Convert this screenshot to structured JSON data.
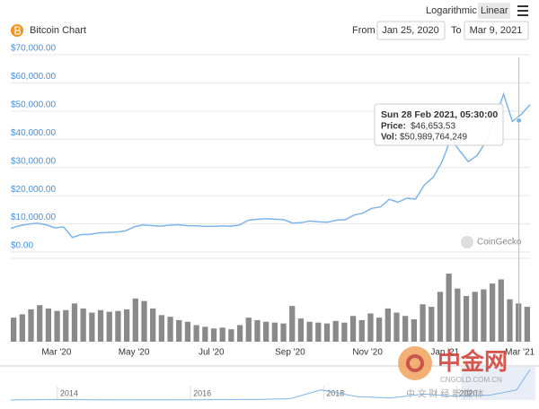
{
  "header": {
    "title": "Bitcoin Chart",
    "scale_options": [
      "Logarithmic",
      "Linear"
    ],
    "selected_scale": 1,
    "from_label": "From",
    "to_label": "To"
  },
  "chart_data": [
    {
      "type": "line",
      "color": "#7cb5ec",
      "log_scale": false,
      "grid": true,
      "xlim": [
        "Jan 25, 2020",
        "Mar 9, 2021"
      ],
      "ylim": [
        0,
        70000
      ],
      "yticks": [
        {
          "value": 0,
          "label": "$0.00"
        },
        {
          "value": 10000,
          "label": "$10,000.00"
        },
        {
          "value": 20000,
          "label": "$20,000.00"
        },
        {
          "value": 30000,
          "label": "$30,000.00"
        },
        {
          "value": 40000,
          "label": "$40,000.00"
        },
        {
          "value": 50000,
          "label": "$50,000.00"
        },
        {
          "value": 60000,
          "label": "$60,000.00"
        },
        {
          "value": 70000,
          "label": "$70,000.00"
        }
      ],
      "xticks": [
        {
          "value": "2020-03",
          "label": "Mar '20"
        },
        {
          "value": "2020-05",
          "label": "May '20"
        },
        {
          "value": "2020-07",
          "label": "Jul '20"
        },
        {
          "value": "2020-09",
          "label": "Sep '20"
        },
        {
          "value": "2020-11",
          "label": "Nov '20"
        },
        {
          "value": "2021-01",
          "label": "Jan '21"
        },
        {
          "value": "2021-03",
          "label": "Mar '21"
        }
      ],
      "values": [
        8400,
        9350,
        9900,
        10200,
        9700,
        8600,
        8900,
        5200,
        6200,
        6300,
        6800,
        6900,
        7100,
        7500,
        8900,
        9600,
        9400,
        9200,
        9500,
        9700,
        9400,
        9300,
        9100,
        9100,
        9250,
        9150,
        9600,
        11300,
        11600,
        11800,
        11650,
        11500,
        10300,
        10400,
        11000,
        10700,
        10600,
        11300,
        11500,
        13100,
        13800,
        15500,
        16000,
        18700,
        17700,
        19100,
        18800,
        23800,
        26500,
        32000,
        40200,
        36000,
        32000,
        34300,
        39200,
        47200,
        56000,
        46300,
        48800,
        52300
      ],
      "tooltip": {
        "time": "Sun 28 Feb 2021, 05:30:00",
        "price_label": "Price:",
        "price": {
          "value": 46653.53,
          "label": "$46,653.53"
        },
        "volume_label": "Vol:",
        "volume": {
          "value": 50989764249,
          "label": "$50,989,764,249"
        }
      },
      "credit": "CoinGecko"
    },
    {
      "type": "bar",
      "color": "#8a8a8a",
      "values": [
        29000000000.0,
        33000000000.0,
        39000000000.0,
        44000000000.0,
        40000000000.0,
        37000000000.0,
        38000000000.0,
        46000000000.0,
        40000000000.0,
        35000000000.0,
        38000000000.0,
        36000000000.0,
        37000000000.0,
        39000000000.0,
        52000000000.0,
        49000000000.0,
        40000000000.0,
        32000000000.0,
        30000000000.0,
        26000000000.0,
        24000000000.0,
        20000000000.0,
        18000000000.0,
        16000000000.0,
        17000000000.0,
        15000000000.0,
        20000000000.0,
        29000000000.0,
        26000000000.0,
        24000000000.0,
        23000000000.0,
        22000000000.0,
        43000000000.0,
        28000000000.0,
        24000000000.0,
        23000000000.0,
        22000000000.0,
        25000000000.0,
        23000000000.0,
        31000000000.0,
        26000000000.0,
        34000000000.0,
        29000000000.0,
        40000000000.0,
        35000000000.0,
        31000000000.0,
        27000000000.0,
        45000000000.0,
        42000000000.0,
        60000000000.0,
        82000000000.0,
        64000000000.0,
        55000000000.0,
        60000000000.0,
        63000000000.0,
        70000000000.0,
        75000000000.0,
        51000000000.0,
        46000000000.0,
        42000000000.0
      ]
    },
    {
      "type": "area",
      "color": "#7cb5ec",
      "xlim": [
        2013.3,
        2021.1
      ],
      "xticks": [
        2014,
        2016,
        2018,
        2020
      ],
      "x": [
        2013.3,
        2014,
        2015,
        2016,
        2017,
        2017.5,
        2017.96,
        2018.5,
        2019,
        2019.5,
        2020,
        2020.5,
        2020.9,
        2021.1
      ],
      "values": [
        100,
        800,
        250,
        430,
        1000,
        2500,
        19000,
        6500,
        3700,
        11000,
        7200,
        9200,
        19000,
        57000
      ]
    }
  ],
  "watermark": {
    "brand": "中金网",
    "domain": "CNGOLD.COM.CN",
    "slogan": "中 文 财 经 新 媒 体"
  }
}
